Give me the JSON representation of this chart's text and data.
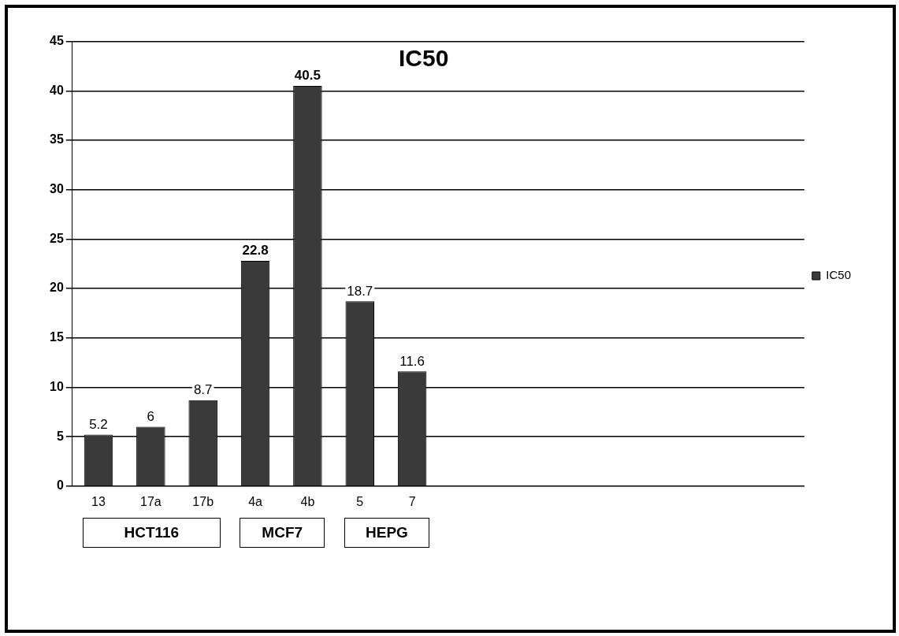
{
  "chart_data": {
    "type": "bar",
    "title": "IC50",
    "categories": [
      "13",
      "17a",
      "17b",
      "4a",
      "4b",
      "5",
      "7",
      null,
      null,
      null,
      null,
      null,
      null,
      null
    ],
    "series": [
      {
        "name": "IC50",
        "color": "#3a3a3a",
        "values": [
          5.2,
          6,
          8.7,
          22.8,
          40.5,
          18.7,
          11.6,
          null,
          null,
          null,
          null,
          null,
          null,
          null
        ]
      }
    ],
    "ylim": [
      0,
      45
    ],
    "yticks": [
      0,
      5,
      10,
      15,
      20,
      25,
      30,
      35,
      40,
      45
    ],
    "grid": "y",
    "legend": "right",
    "data_labels": true,
    "annotations": [
      "HCT116",
      "MCF7",
      "HEPG"
    ]
  }
}
